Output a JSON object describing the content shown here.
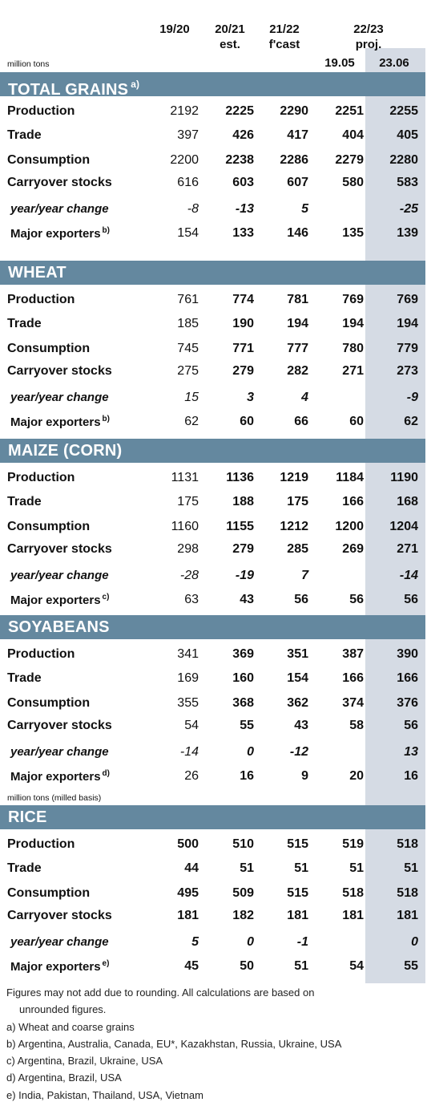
{
  "columns": {
    "c0": {
      "line1": "19/20",
      "line2": ""
    },
    "c1": {
      "line1": "20/21",
      "line2": "est."
    },
    "c2": {
      "line1": "21/22",
      "line2": "f'cast"
    },
    "proj": {
      "line1": "22/23",
      "line2": "proj."
    },
    "c3": "19.05",
    "c4": "23.06"
  },
  "units": {
    "top": "million tons",
    "rice": "million tons (milled basis)"
  },
  "sections": [
    {
      "title": "TOTAL GRAINS",
      "note": "a)",
      "rows": [
        {
          "label": "Production",
          "values": [
            "2192",
            "2225",
            "2290",
            "2251",
            "2255"
          ]
        },
        {
          "label": "Trade",
          "values": [
            "397",
            "426",
            "417",
            "404",
            "405"
          ]
        },
        {
          "label": "Consumption",
          "values": [
            "2200",
            "2238",
            "2286",
            "2279",
            "2280"
          ]
        },
        {
          "label": "Carryover stocks",
          "values": [
            "616",
            "603",
            "607",
            "580",
            "583"
          ]
        },
        {
          "label": "year/year change",
          "values": [
            "-8",
            "-13",
            "5",
            "",
            "-25"
          ]
        },
        {
          "label": "Major exporters",
          "note": "b)",
          "values": [
            "154",
            "133",
            "146",
            "135",
            "139"
          ]
        }
      ]
    },
    {
      "title": "WHEAT",
      "note": "",
      "rows": [
        {
          "label": "Production",
          "values": [
            "761",
            "774",
            "781",
            "769",
            "769"
          ]
        },
        {
          "label": "Trade",
          "values": [
            "185",
            "190",
            "194",
            "194",
            "194"
          ]
        },
        {
          "label": "Consumption",
          "values": [
            "745",
            "771",
            "777",
            "780",
            "779"
          ]
        },
        {
          "label": "Carryover stocks",
          "values": [
            "275",
            "279",
            "282",
            "271",
            "273"
          ]
        },
        {
          "label": "year/year change",
          "values": [
            "15",
            "3",
            "4",
            "",
            "-9"
          ]
        },
        {
          "label": "Major exporters",
          "note": "b)",
          "values": [
            "62",
            "60",
            "66",
            "60",
            "62"
          ]
        }
      ]
    },
    {
      "title": "MAIZE (CORN)",
      "note": "",
      "rows": [
        {
          "label": "Production",
          "values": [
            "1131",
            "1136",
            "1219",
            "1184",
            "1190"
          ]
        },
        {
          "label": "Trade",
          "values": [
            "175",
            "188",
            "175",
            "166",
            "168"
          ]
        },
        {
          "label": "Consumption",
          "values": [
            "1160",
            "1155",
            "1212",
            "1200",
            "1204"
          ]
        },
        {
          "label": "Carryover stocks",
          "values": [
            "298",
            "279",
            "285",
            "269",
            "271"
          ]
        },
        {
          "label": "year/year change",
          "values": [
            "-28",
            "-19",
            "7",
            "",
            "-14"
          ]
        },
        {
          "label": "Major exporters",
          "note": "c)",
          "values": [
            "63",
            "43",
            "56",
            "56",
            "56"
          ]
        }
      ]
    },
    {
      "title": "SOYABEANS",
      "note": "",
      "rows": [
        {
          "label": "Production",
          "values": [
            "341",
            "369",
            "351",
            "387",
            "390"
          ]
        },
        {
          "label": "Trade",
          "values": [
            "169",
            "160",
            "154",
            "166",
            "166"
          ]
        },
        {
          "label": "Consumption",
          "values": [
            "355",
            "368",
            "362",
            "374",
            "376"
          ]
        },
        {
          "label": "Carryover stocks",
          "values": [
            "54",
            "55",
            "43",
            "58",
            "56"
          ]
        },
        {
          "label": "year/year change",
          "values": [
            "-14",
            "0",
            "-12",
            "",
            "13"
          ]
        },
        {
          "label": "Major exporters",
          "note": "d)",
          "values": [
            "26",
            "16",
            "9",
            "20",
            "16"
          ]
        }
      ]
    },
    {
      "title": "RICE",
      "note": "",
      "rows": [
        {
          "label": "Production",
          "values": [
            "500",
            "510",
            "515",
            "519",
            "518"
          ]
        },
        {
          "label": "Trade",
          "values": [
            "44",
            "51",
            "51",
            "51",
            "51"
          ]
        },
        {
          "label": "Consumption",
          "values": [
            "495",
            "509",
            "515",
            "518",
            "518"
          ]
        },
        {
          "label": "Carryover stocks",
          "values": [
            "181",
            "182",
            "181",
            "181",
            "181"
          ]
        },
        {
          "label": "year/year change",
          "values": [
            "5",
            "0",
            "-1",
            "",
            "0"
          ]
        },
        {
          "label": "Major exporters",
          "note": "e)",
          "values": [
            "45",
            "50",
            "51",
            "54",
            "55"
          ]
        }
      ]
    }
  ],
  "footnotes": [
    "Figures may not add due to rounding. All calculations are based on",
    "unrounded figures.",
    "a) Wheat and coarse grains",
    "b) Argentina, Australia, Canada, EU*, Kazakhstan, Russia, Ukraine, USA",
    "c) Argentina, Brazil, Ukraine, USA",
    "d) Argentina, Brazil, USA",
    "e) India, Pakistan, Thailand, USA, Vietnam"
  ],
  "colors": {
    "band": "#64889f",
    "shade": "#d5dbe4"
  }
}
